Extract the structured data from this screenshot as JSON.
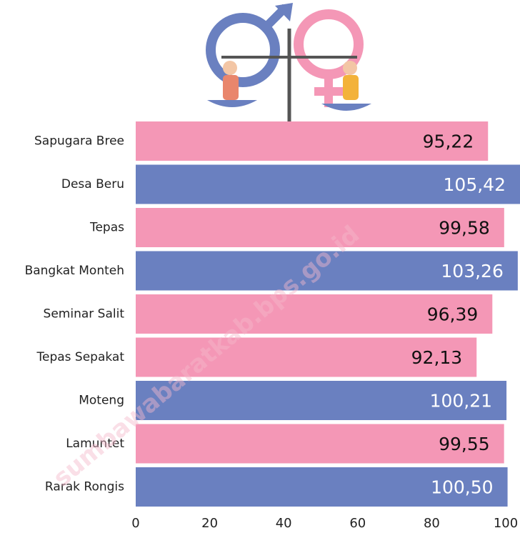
{
  "chart_data": {
    "type": "bar",
    "orientation": "horizontal",
    "categories": [
      "Sapugara Bree",
      "Desa Beru",
      "Tepas",
      "Bangkat Monteh",
      "Seminar Salit",
      "Tepas Sepakat",
      "Moteng",
      "Lamuntet",
      "Rarak Rongis"
    ],
    "values": [
      95.22,
      105.42,
      99.58,
      103.26,
      96.39,
      92.13,
      100.21,
      99.55,
      100.5
    ],
    "value_labels": [
      "95,22",
      "105,42",
      "99,58",
      "103,26",
      "96,39",
      "92,13",
      "100,21",
      "99,55",
      "100,50"
    ],
    "colors": [
      "#f497b6",
      "#6a80c0",
      "#f497b6",
      "#6a80c0",
      "#f497b6",
      "#f497b6",
      "#6a80c0",
      "#f497b6",
      "#6a80c0"
    ],
    "xlim": [
      0,
      100
    ],
    "xticks": [
      0,
      20,
      40,
      60,
      80,
      100
    ],
    "watermark": "sumbawabaratkab.bps.go.id"
  }
}
